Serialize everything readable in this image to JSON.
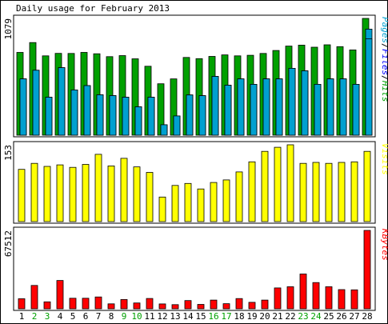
{
  "chart_data": {
    "type": "bar",
    "title": "Daily usage for February 2013",
    "categories": [
      "1",
      "2",
      "3",
      "4",
      "5",
      "6",
      "7",
      "8",
      "9",
      "10",
      "11",
      "12",
      "13",
      "14",
      "15",
      "16",
      "17",
      "18",
      "19",
      "20",
      "21",
      "22",
      "23",
      "24",
      "25",
      "26",
      "27",
      "28"
    ],
    "weekend_days": [
      "2",
      "3",
      "9",
      "10",
      "16",
      "17",
      "23",
      "24"
    ],
    "colors": {
      "pages": "#00a000",
      "files": "#0000ff",
      "hits": "#00a0d0",
      "visits": "#ffff00",
      "kbytes": "#ff0000",
      "weekend_label": "#00a000",
      "weekday_label": "#000000"
    },
    "panels": [
      {
        "ymax_label": "1079",
        "ymax": 1079,
        "legend": [
          "Pages",
          "Files",
          "Hits"
        ],
        "series": [
          {
            "name": "Hits",
            "values": [
              765,
              856,
              733,
              756,
              755,
              765,
              752,
              726,
              735,
              706,
              637,
              475,
              520,
              718,
              707,
              728,
              742,
              733,
              738,
              755,
              783,
              823,
              832,
              813,
              835,
              818,
              788,
              1079
            ]
          },
          {
            "name": "Files",
            "values": [
              520,
              600,
              351,
              624,
              418,
              458,
              373,
              366,
              351,
              262,
              351,
              97,
              178,
              372,
              365,
              543,
              462,
              520,
              470,
              520,
              520,
              618,
              595,
              470,
              520,
              520,
              470,
              980
            ]
          },
          {
            "name": "Pages",
            "values": [
              520,
              600,
              351,
              624,
              418,
              458,
              373,
              366,
              351,
              262,
              351,
              97,
              178,
              372,
              365,
              543,
              462,
              520,
              470,
              520,
              520,
              618,
              595,
              470,
              520,
              520,
              470,
              890
            ]
          }
        ]
      },
      {
        "ymax_label": "153",
        "ymax": 153,
        "legend": [
          "Visits"
        ],
        "series": [
          {
            "name": "Visits",
            "values": [
              104,
              116,
              110,
              113,
              108,
              114,
              134,
              111,
              126,
              109,
              98,
              49,
              72,
              76,
              65,
              78,
              83,
              99,
              119,
              140,
              148,
              153,
              116,
              118,
              116,
              118,
              119,
              140
            ]
          }
        ]
      },
      {
        "ymax_label": "67512",
        "ymax": 67512,
        "legend": [
          "KBytes"
        ],
        "series": [
          {
            "name": "KBytes",
            "values": [
              8700,
              20100,
              6000,
              24400,
              9100,
              9100,
              10200,
              4300,
              8000,
              5000,
              8900,
              4200,
              3600,
              7100,
              3800,
              7500,
              4400,
              8800,
              5600,
              7500,
              18000,
              19000,
              30000,
              22600,
              19000,
              16500,
              16300,
              67512
            ]
          }
        ]
      }
    ]
  }
}
